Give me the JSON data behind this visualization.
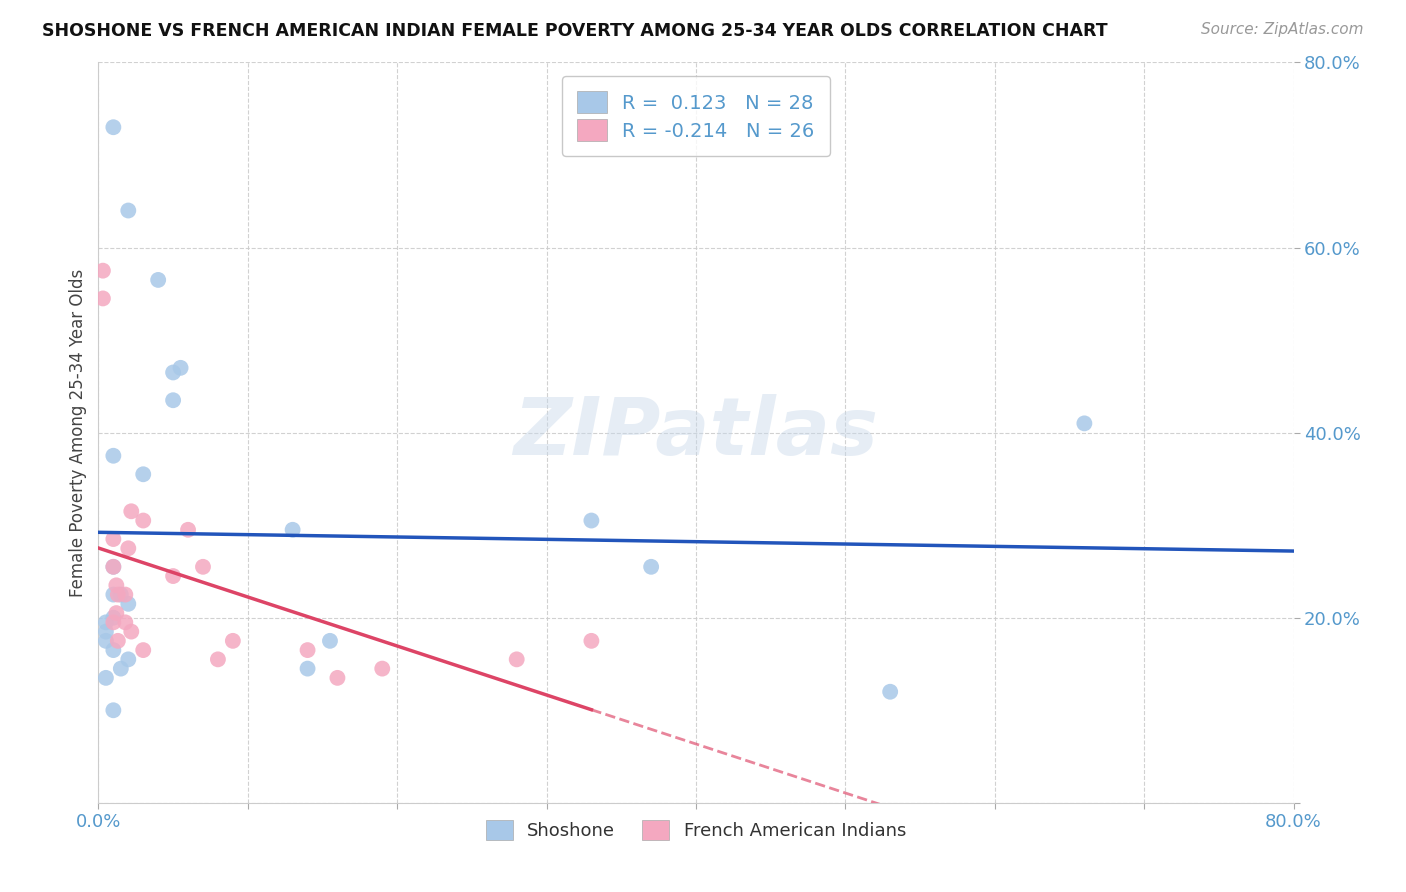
{
  "title": "SHOSHONE VS FRENCH AMERICAN INDIAN FEMALE POVERTY AMONG 25-34 YEAR OLDS CORRELATION CHART",
  "source": "Source: ZipAtlas.com",
  "ylabel": "Female Poverty Among 25-34 Year Olds",
  "xlim": [
    0,
    0.8
  ],
  "ylim": [
    0,
    0.8
  ],
  "shoshone_color": "#a8c8e8",
  "french_color": "#f4a8c0",
  "shoshone_line_color": "#2255bb",
  "french_line_color": "#dd4466",
  "R_shoshone": 0.123,
  "N_shoshone": 28,
  "R_french": -0.214,
  "N_french": 26,
  "legend_label_shoshone": "Shoshone",
  "legend_label_french": "French American Indians",
  "watermark": "ZIPatlas",
  "shoshone_x": [
    0.01,
    0.04,
    0.02,
    0.01,
    0.03,
    0.01,
    0.005,
    0.01,
    0.015,
    0.05,
    0.055,
    0.05,
    0.005,
    0.005,
    0.01,
    0.015,
    0.02,
    0.005,
    0.01,
    0.13,
    0.155,
    0.14,
    0.53,
    0.66,
    0.33,
    0.37,
    0.01,
    0.02
  ],
  "shoshone_y": [
    0.255,
    0.565,
    0.215,
    0.225,
    0.355,
    0.375,
    0.185,
    0.165,
    0.145,
    0.465,
    0.47,
    0.435,
    0.175,
    0.195,
    0.2,
    0.225,
    0.155,
    0.135,
    0.1,
    0.295,
    0.175,
    0.145,
    0.12,
    0.41,
    0.305,
    0.255,
    0.73,
    0.64
  ],
  "french_x": [
    0.003,
    0.003,
    0.01,
    0.01,
    0.013,
    0.01,
    0.013,
    0.02,
    0.022,
    0.03,
    0.05,
    0.06,
    0.07,
    0.08,
    0.09,
    0.14,
    0.16,
    0.19,
    0.28,
    0.33,
    0.012,
    0.012,
    0.018,
    0.018,
    0.022,
    0.03
  ],
  "french_y": [
    0.575,
    0.545,
    0.255,
    0.285,
    0.225,
    0.195,
    0.175,
    0.275,
    0.315,
    0.305,
    0.245,
    0.295,
    0.255,
    0.155,
    0.175,
    0.165,
    0.135,
    0.145,
    0.155,
    0.175,
    0.235,
    0.205,
    0.225,
    0.195,
    0.185,
    0.165
  ],
  "tick_color": "#5599cc",
  "grid_color": "#cccccc",
  "title_fontsize": 12.5,
  "source_fontsize": 11,
  "tick_fontsize": 13,
  "ylabel_fontsize": 12,
  "legend_fontsize": 14,
  "scatter_size": 130,
  "scatter_alpha": 0.85
}
